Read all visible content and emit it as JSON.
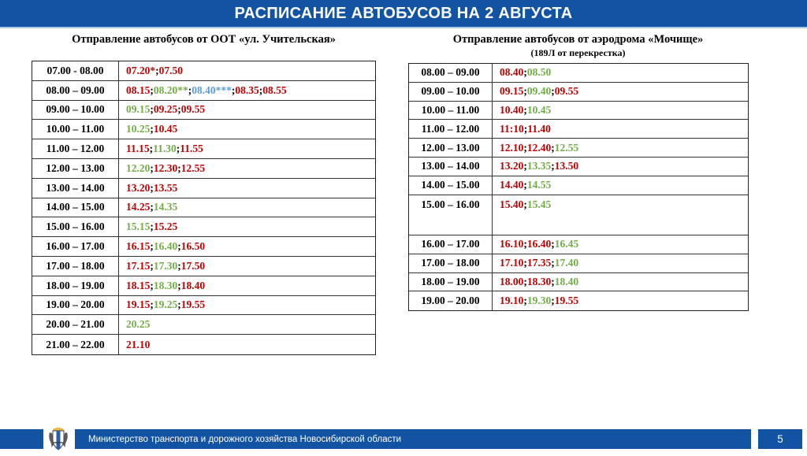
{
  "header": {
    "title": "РАСПИСАНИЕ АВТОБУСОВ НА 2 АВГУСТА"
  },
  "colors": {
    "red": "#C00000",
    "green": "#70AD47",
    "blue": "#5B9BD5",
    "header_blue": "#1353A4"
  },
  "left_section": {
    "title": "Отправление автобусов от ООТ «ул. Учительская»",
    "rows": [
      {
        "range": "07.00 - 08.00",
        "times": [
          {
            "t": "07.20*",
            "c": "red"
          },
          {
            "t": "07.50",
            "c": "red"
          }
        ]
      },
      {
        "range": "08.00 – 09.00",
        "times": [
          {
            "t": "08.15",
            "c": "red"
          },
          {
            "t": "08.20**",
            "c": "green"
          },
          {
            "t": "08.40***",
            "c": "blue"
          },
          {
            "t": "08.35",
            "c": "red"
          },
          {
            "t": "08.55",
            "c": "red"
          }
        ]
      },
      {
        "range": "09.00 – 10.00",
        "times": [
          {
            "t": "09.15",
            "c": "green"
          },
          {
            "t": "09.25",
            "c": "red"
          },
          {
            "t": "09.55",
            "c": "red"
          }
        ]
      },
      {
        "range": "10.00 – 11.00",
        "times": [
          {
            "t": "10.25",
            "c": "green"
          },
          {
            "t": "10.45",
            "c": "red"
          }
        ]
      },
      {
        "range": "11.00 – 12.00",
        "times": [
          {
            "t": "11.15",
            "c": "red"
          },
          {
            "t": "11.30",
            "c": "green"
          },
          {
            "t": "11.55",
            "c": "red"
          }
        ]
      },
      {
        "range": "12.00 – 13.00",
        "times": [
          {
            "t": "12.20",
            "c": "green"
          },
          {
            "t": "12.30",
            "c": "red"
          },
          {
            "t": "12.55",
            "c": "red"
          }
        ]
      },
      {
        "range": "13.00 – 14.00",
        "times": [
          {
            "t": "13.20",
            "c": "red"
          },
          {
            "t": "13.55",
            "c": "red"
          }
        ]
      },
      {
        "range": "14.00 – 15.00",
        "times": [
          {
            "t": "14.25",
            "c": "red"
          },
          {
            "t": "14.35",
            "c": "green"
          }
        ]
      },
      {
        "range": "15.00 – 16.00",
        "times": [
          {
            "t": "15.15",
            "c": "green"
          },
          {
            "t": "15.25",
            "c": "red"
          }
        ]
      },
      {
        "range": "16.00 – 17.00",
        "times": [
          {
            "t": "16.15",
            "c": "red"
          },
          {
            "t": "16.40",
            "c": "green"
          },
          {
            "t": "16.50",
            "c": "red"
          }
        ]
      },
      {
        "range": "17.00 – 18.00",
        "times": [
          {
            "t": "17.15",
            "c": "red"
          },
          {
            "t": "17.30",
            "c": "green"
          },
          {
            "t": "17.50",
            "c": "red"
          }
        ]
      },
      {
        "range": "18.00 – 19.00",
        "times": [
          {
            "t": "18.15",
            "c": "red"
          },
          {
            "t": "18.30",
            "c": "green"
          },
          {
            "t": "18.40",
            "c": "red"
          }
        ]
      },
      {
        "range": "19.00 – 20.00",
        "times": [
          {
            "t": "19.15",
            "c": "red"
          },
          {
            "t": "19.25",
            "c": "green"
          },
          {
            "t": "19.55",
            "c": "red"
          }
        ]
      },
      {
        "range": "20.00 – 21.00",
        "times": [
          {
            "t": "20.25",
            "c": "green"
          }
        ]
      },
      {
        "range": "21.00 – 22.00",
        "times": [
          {
            "t": "21.10",
            "c": "red"
          }
        ]
      }
    ]
  },
  "right_section": {
    "title": "Отправление автобусов от аэродрома «Мочище»",
    "subtitle": "(189Л от перекрестка)",
    "rows": [
      {
        "range": "08.00 – 09.00",
        "times": [
          {
            "t": "08.40",
            "c": "red"
          },
          {
            "t": "08.50",
            "c": "green"
          }
        ]
      },
      {
        "range": "09.00 – 10.00",
        "times": [
          {
            "t": "09.15",
            "c": "red"
          },
          {
            "t": "09.40",
            "c": "green"
          },
          {
            "t": "09.55",
            "c": "red"
          }
        ]
      },
      {
        "range": "10.00 – 11.00",
        "times": [
          {
            "t": "10.40",
            "c": "red"
          },
          {
            "t": "10.45",
            "c": "green"
          }
        ]
      },
      {
        "range": "11.00 – 12.00",
        "times": [
          {
            "t": "11:10",
            "c": "red"
          },
          {
            "t": "11.40",
            "c": "red"
          }
        ]
      },
      {
        "range": "12.00 – 13.00",
        "times": [
          {
            "t": "12.10",
            "c": "red"
          },
          {
            "t": "12.40",
            "c": "red"
          },
          {
            "t": "12.55",
            "c": "green"
          }
        ]
      },
      {
        "range": "13.00 – 14.00",
        "times": [
          {
            "t": "13.20",
            "c": "red"
          },
          {
            "t": "13.35",
            "c": "green"
          },
          {
            "t": "13.50",
            "c": "red"
          }
        ]
      },
      {
        "range": "14.00 – 15.00",
        "times": [
          {
            "t": "14.40",
            "c": "red"
          },
          {
            "t": "14.55",
            "c": "green"
          }
        ]
      },
      {
        "range": "15.00 – 16.00",
        "tall": true,
        "times": [
          {
            "t": "15.40",
            "c": "red"
          },
          {
            "t": "15.45",
            "c": "green"
          }
        ]
      },
      {
        "range": "16.00 – 17.00",
        "times": [
          {
            "t": "16.10",
            "c": "red"
          },
          {
            "t": "16.40",
            "c": "red"
          },
          {
            "t": "16.45",
            "c": "green"
          }
        ]
      },
      {
        "range": "17.00 – 18.00",
        "times": [
          {
            "t": "17.10",
            "c": "red"
          },
          {
            "t": "17.35",
            "c": "red"
          },
          {
            "t": "17.40",
            "c": "green"
          }
        ]
      },
      {
        "range": "18.00 – 19.00",
        "times": [
          {
            "t": "18.00",
            "c": "red"
          },
          {
            "t": "18.30",
            "c": "red"
          },
          {
            "t": "18.40",
            "c": "green"
          }
        ]
      },
      {
        "range": "19.00 – 20.00",
        "times": [
          {
            "t": "19.10",
            "c": "red"
          },
          {
            "t": "19.30",
            "c": "green"
          },
          {
            "t": "19.55",
            "c": "red"
          }
        ]
      }
    ]
  },
  "footer": {
    "ministry": "Министерство транспорта и дорожного хозяйства Новосибирской области",
    "page_number": "5"
  }
}
